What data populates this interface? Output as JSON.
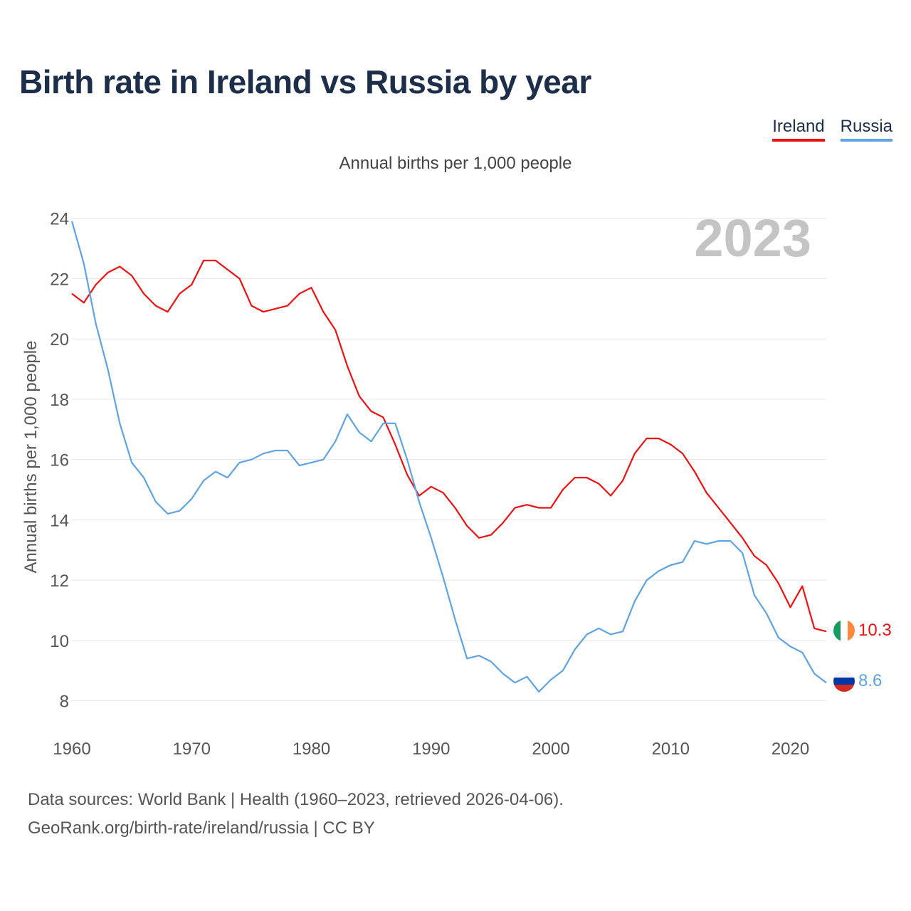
{
  "chart_data": {
    "type": "line",
    "title": "Birth rate in Ireland vs Russia by year",
    "subtitle": "Annual births per 1,000 people",
    "ylabel": "Annual births per 1,000 people",
    "xlabel": "",
    "xlim": [
      1960,
      2023
    ],
    "ylim": [
      7,
      24.3
    ],
    "x_ticks": [
      1960,
      1970,
      1980,
      1990,
      2000,
      2010,
      2020
    ],
    "y_ticks": [
      8,
      10,
      12,
      14,
      16,
      18,
      20,
      22,
      24
    ],
    "year_watermark": "2023",
    "legend_position": "top-right",
    "x": [
      1960,
      1961,
      1962,
      1963,
      1964,
      1965,
      1966,
      1967,
      1968,
      1969,
      1970,
      1971,
      1972,
      1973,
      1974,
      1975,
      1976,
      1977,
      1978,
      1979,
      1980,
      1981,
      1982,
      1983,
      1984,
      1985,
      1986,
      1987,
      1988,
      1989,
      1990,
      1991,
      1992,
      1993,
      1994,
      1995,
      1996,
      1997,
      1998,
      1999,
      2000,
      2001,
      2002,
      2003,
      2004,
      2005,
      2006,
      2007,
      2008,
      2009,
      2010,
      2011,
      2012,
      2013,
      2014,
      2015,
      2016,
      2017,
      2018,
      2019,
      2020,
      2021,
      2022,
      2023
    ],
    "series": [
      {
        "name": "Ireland",
        "color": "#ee1111",
        "end_label": "10.3",
        "values": [
          21.5,
          21.2,
          21.8,
          22.2,
          22.4,
          22.1,
          21.5,
          21.1,
          20.9,
          21.5,
          21.8,
          22.6,
          22.6,
          22.3,
          22.0,
          21.1,
          20.9,
          21.0,
          21.1,
          21.5,
          21.7,
          20.9,
          20.3,
          19.1,
          18.1,
          17.6,
          17.4,
          16.5,
          15.5,
          14.8,
          15.1,
          14.9,
          14.4,
          13.8,
          13.4,
          13.5,
          13.9,
          14.4,
          14.5,
          14.4,
          14.4,
          15.0,
          15.4,
          15.4,
          15.2,
          14.8,
          15.3,
          16.2,
          16.7,
          16.7,
          16.5,
          16.2,
          15.6,
          14.9,
          14.4,
          13.9,
          13.4,
          12.8,
          12.5,
          11.9,
          11.1,
          11.8,
          10.4,
          10.3
        ]
      },
      {
        "name": "Russia",
        "color": "#5fa3e3",
        "end_label": "8.6",
        "values": [
          23.9,
          22.5,
          20.5,
          19.0,
          17.2,
          15.9,
          15.4,
          14.6,
          14.2,
          14.3,
          14.7,
          15.3,
          15.6,
          15.4,
          15.9,
          16.0,
          16.2,
          16.3,
          16.3,
          15.8,
          15.9,
          16.0,
          16.6,
          17.5,
          16.9,
          16.6,
          17.2,
          17.2,
          16.0,
          14.6,
          13.4,
          12.1,
          10.7,
          9.4,
          9.5,
          9.3,
          8.9,
          8.6,
          8.8,
          8.3,
          8.7,
          9.0,
          9.7,
          10.2,
          10.4,
          10.2,
          10.3,
          11.3,
          12.0,
          12.3,
          12.5,
          12.6,
          13.3,
          13.2,
          13.3,
          13.3,
          12.9,
          11.5,
          10.9,
          10.1,
          9.8,
          9.6,
          8.9,
          8.6
        ]
      }
    ]
  },
  "footer": {
    "line1": "Data sources: World Bank | Health (1960–2023, retrieved 2026-04-06).",
    "line2": "GeoRank.org/birth-rate/ireland/russia | CC BY"
  }
}
